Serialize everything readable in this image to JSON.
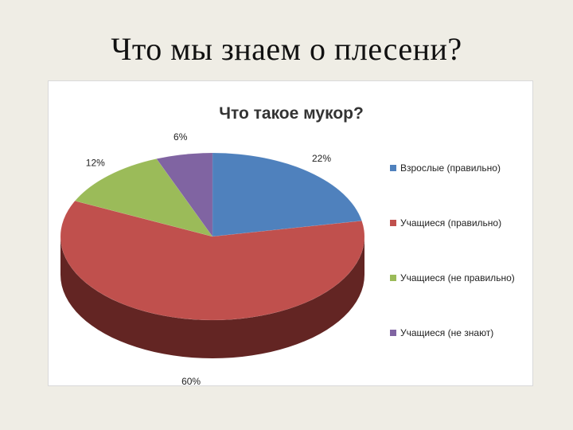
{
  "slide": {
    "title": "Что мы знаем о плесени?"
  },
  "chart_data": {
    "type": "pie",
    "title": "Что такое мукор?",
    "style": "3d",
    "legend_position": "right",
    "slices": [
      {
        "label": "Взрослые (правильно)",
        "value": 22,
        "display": "22%",
        "color": "#4f81bd",
        "side_color": "#2c4d75"
      },
      {
        "label": "Учащиеся (правильно)",
        "value": 60,
        "display": "60%",
        "color": "#c0504d",
        "side_color": "#632523"
      },
      {
        "label": "Учащиеся (не правильно)",
        "value": 12,
        "display": "12%",
        "color": "#9bbb59",
        "side_color": "#5f7530"
      },
      {
        "label": "Учащиеся (не знают)",
        "value": 6,
        "display": "6%",
        "color": "#8064a2",
        "side_color": "#4a3a60"
      }
    ]
  }
}
